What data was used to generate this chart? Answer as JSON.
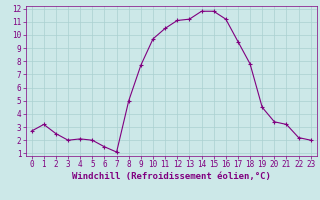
{
  "xlabel": "Windchill (Refroidissement éolien,°C)",
  "ylabel": "",
  "bg_color": "#cce8e8",
  "line_color": "#800080",
  "marker": "+",
  "hours": [
    0,
    1,
    2,
    3,
    4,
    5,
    6,
    7,
    8,
    9,
    10,
    11,
    12,
    13,
    14,
    15,
    16,
    17,
    18,
    19,
    20,
    21,
    22,
    23
  ],
  "values": [
    2.7,
    3.2,
    2.5,
    2.0,
    2.1,
    2.0,
    1.5,
    1.1,
    5.0,
    7.7,
    9.7,
    10.5,
    11.1,
    11.2,
    11.8,
    11.8,
    11.2,
    9.5,
    7.8,
    4.5,
    3.4,
    3.2,
    2.2,
    2.0
  ],
  "xlim": [
    -0.5,
    23.5
  ],
  "ylim": [
    0.8,
    12.2
  ],
  "yticks": [
    1,
    2,
    3,
    4,
    5,
    6,
    7,
    8,
    9,
    10,
    11,
    12
  ],
  "xticks": [
    0,
    1,
    2,
    3,
    4,
    5,
    6,
    7,
    8,
    9,
    10,
    11,
    12,
    13,
    14,
    15,
    16,
    17,
    18,
    19,
    20,
    21,
    22,
    23
  ],
  "grid_color": "#aad0d0",
  "label_fontsize": 6.5,
  "tick_fontsize": 5.5,
  "line_width": 0.8,
  "marker_size": 2.5,
  "marker_edge_width": 0.8
}
